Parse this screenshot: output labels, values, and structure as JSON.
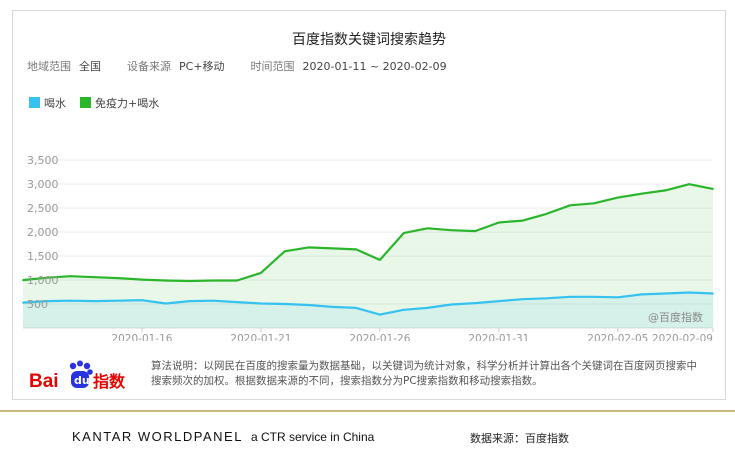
{
  "header": {
    "title": "百度指数关键词搜索趋势",
    "region_label": "地域范围",
    "region_value": "全国",
    "device_label": "设备来源",
    "device_value": "PC+移动",
    "time_label": "时间范围",
    "time_value": "2020-01-11 ~ 2020-02-09"
  },
  "legend": {
    "items": [
      {
        "label": "喝水",
        "color": "#35c2f0"
      },
      {
        "label": "免疫力+喝水",
        "color": "#2bb52b"
      }
    ]
  },
  "watermark": "@百度指数",
  "logo": {
    "text_bai": "Bai",
    "text_du": "du",
    "text_zhishu": "指数"
  },
  "algorithm_note": "算法说明：以网民在百度的搜索量为数据基础，以关键词为统计对象，科学分析并计算出各个关键词在百度网页搜索中搜索频次的加权。根据数据来源的不同，搜索指数分为PC搜索指数和移动搜索指数。",
  "footer": {
    "brand": "KANTAR WORLDPANEL",
    "tagline": "a CTR service in China",
    "source": "数据来源：百度指数"
  },
  "chart_data": {
    "type": "area",
    "x_ticks": [
      "2020-01-16",
      "2020-01-21",
      "2020-01-26",
      "2020-01-31",
      "2020-02-05",
      "2020-02-09"
    ],
    "y_ticks": [
      "500",
      "1,000",
      "1,500",
      "2,000",
      "2,500",
      "3,000",
      "3,500"
    ],
    "ylim": [
      0,
      3900
    ],
    "x": [
      "2020-01-11",
      "2020-01-12",
      "2020-01-13",
      "2020-01-14",
      "2020-01-15",
      "2020-01-16",
      "2020-01-17",
      "2020-01-18",
      "2020-01-19",
      "2020-01-20",
      "2020-01-21",
      "2020-01-22",
      "2020-01-23",
      "2020-01-24",
      "2020-01-25",
      "2020-01-26",
      "2020-01-27",
      "2020-01-28",
      "2020-01-29",
      "2020-01-30",
      "2020-01-31",
      "2020-02-01",
      "2020-02-02",
      "2020-02-03",
      "2020-02-04",
      "2020-02-05",
      "2020-02-06",
      "2020-02-07",
      "2020-02-08",
      "2020-02-09"
    ],
    "series": [
      {
        "name": "喝水",
        "color": "#35c2f0",
        "values": [
          530,
          560,
          570,
          560,
          570,
          580,
          510,
          560,
          570,
          540,
          510,
          500,
          480,
          440,
          420,
          280,
          380,
          420,
          490,
          520,
          560,
          600,
          620,
          650,
          650,
          640,
          700,
          720,
          740,
          720
        ]
      },
      {
        "name": "免疫力+喝水",
        "color": "#2bb52b",
        "values": [
          1000,
          1050,
          1080,
          1060,
          1040,
          1010,
          990,
          980,
          990,
          990,
          1150,
          1600,
          1680,
          1660,
          1640,
          1420,
          1980,
          2080,
          2040,
          2020,
          2200,
          2240,
          2380,
          2560,
          2600,
          2720,
          2800,
          2870,
          3000,
          2900
        ]
      }
    ]
  }
}
